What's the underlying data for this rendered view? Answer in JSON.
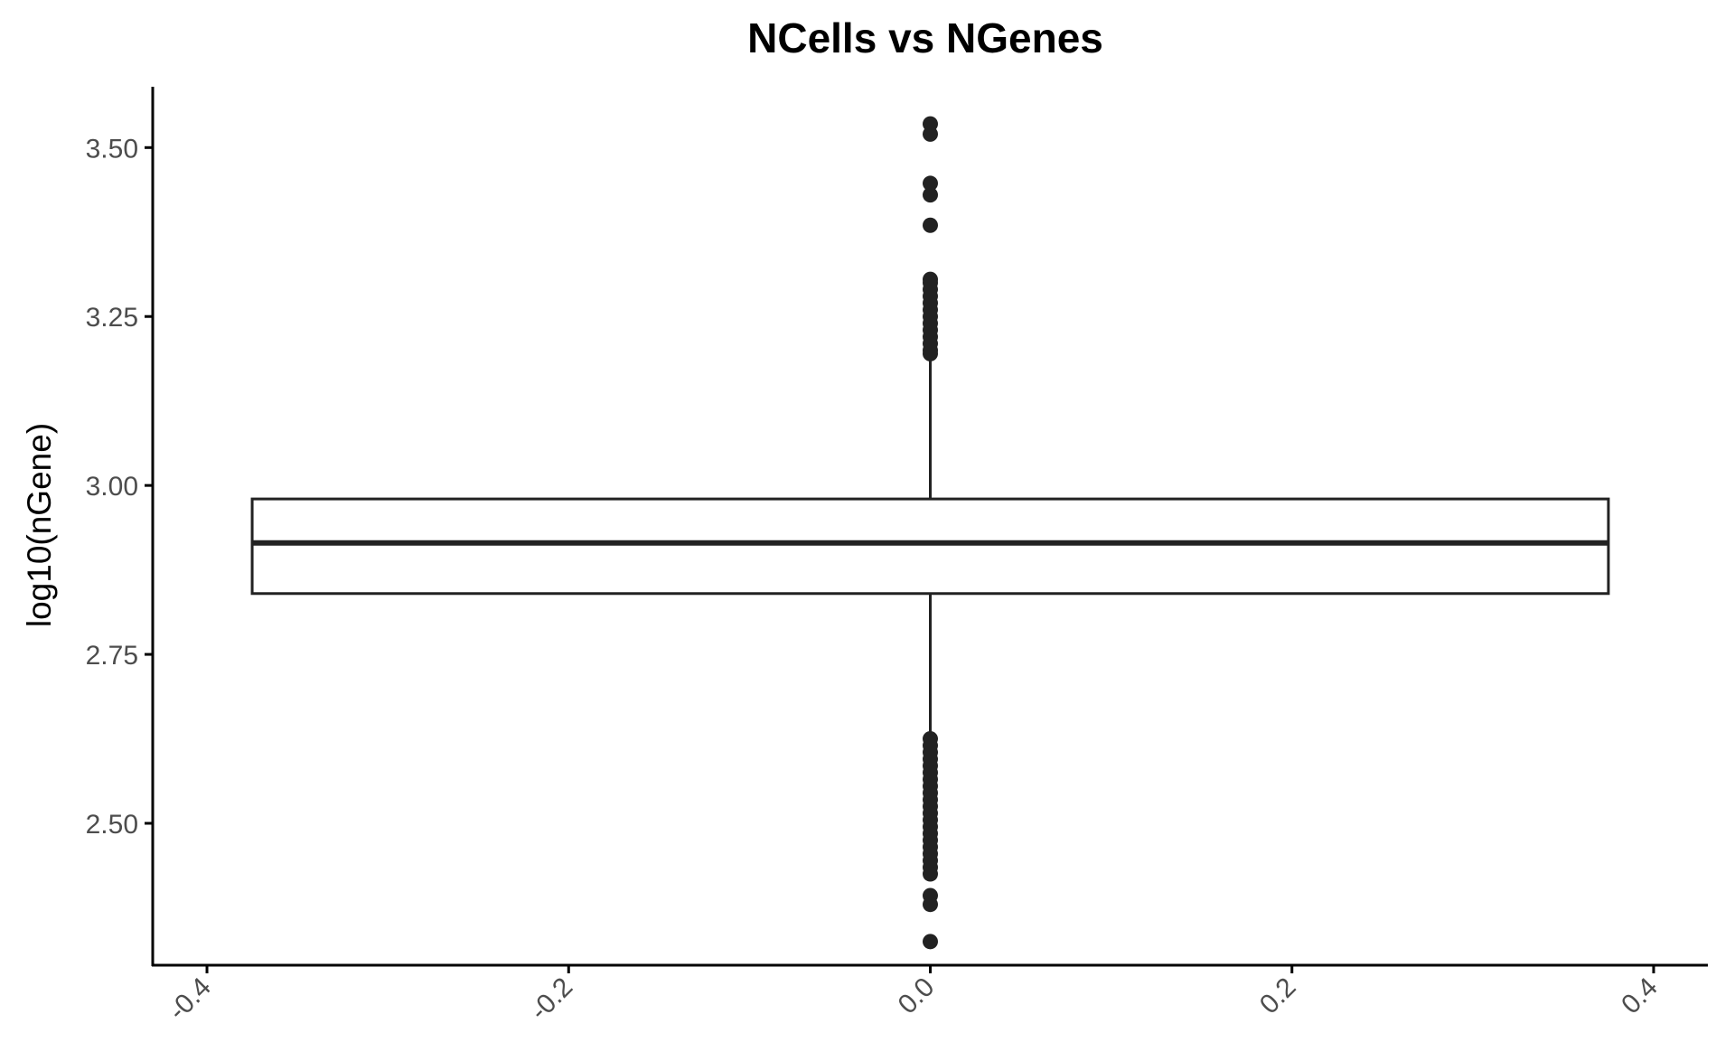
{
  "chart_data": {
    "type": "boxplot",
    "title": "NCells vs NGenes",
    "xlabel": "",
    "ylabel": "log10(nGene)",
    "xlim": [
      -0.43,
      0.43
    ],
    "ylim": [
      2.29,
      3.59
    ],
    "x_ticks": [
      -0.4,
      -0.2,
      0.0,
      0.2,
      0.4
    ],
    "x_tick_labels": [
      "-0.4",
      "-0.2",
      "0.0",
      "0.2",
      "0.4"
    ],
    "y_ticks": [
      2.5,
      2.75,
      3.0,
      3.25,
      3.5
    ],
    "y_tick_labels": [
      "2.50",
      "2.75",
      "3.00",
      "3.25",
      "3.50"
    ],
    "grid": false,
    "legend": "none",
    "box": {
      "x_center": 0.0,
      "x_left": -0.375,
      "x_right": 0.375,
      "q1": 2.84,
      "median": 2.915,
      "q3": 2.98,
      "whisker_low": 2.63,
      "whisker_high": 3.19
    },
    "outliers": [
      3.535,
      3.52,
      3.447,
      3.43,
      3.385,
      3.305,
      3.3,
      3.29,
      3.28,
      3.27,
      3.26,
      3.25,
      3.24,
      3.23,
      3.22,
      3.21,
      3.2,
      3.195,
      2.625,
      2.615,
      2.605,
      2.595,
      2.585,
      2.575,
      2.565,
      2.555,
      2.545,
      2.535,
      2.525,
      2.515,
      2.505,
      2.495,
      2.485,
      2.475,
      2.465,
      2.455,
      2.445,
      2.435,
      2.425,
      2.393,
      2.38,
      2.325
    ],
    "colors": {
      "box_line": "#222222",
      "point": "#222222",
      "axis": "#000000",
      "tick_label": "#4d4d4d"
    }
  }
}
